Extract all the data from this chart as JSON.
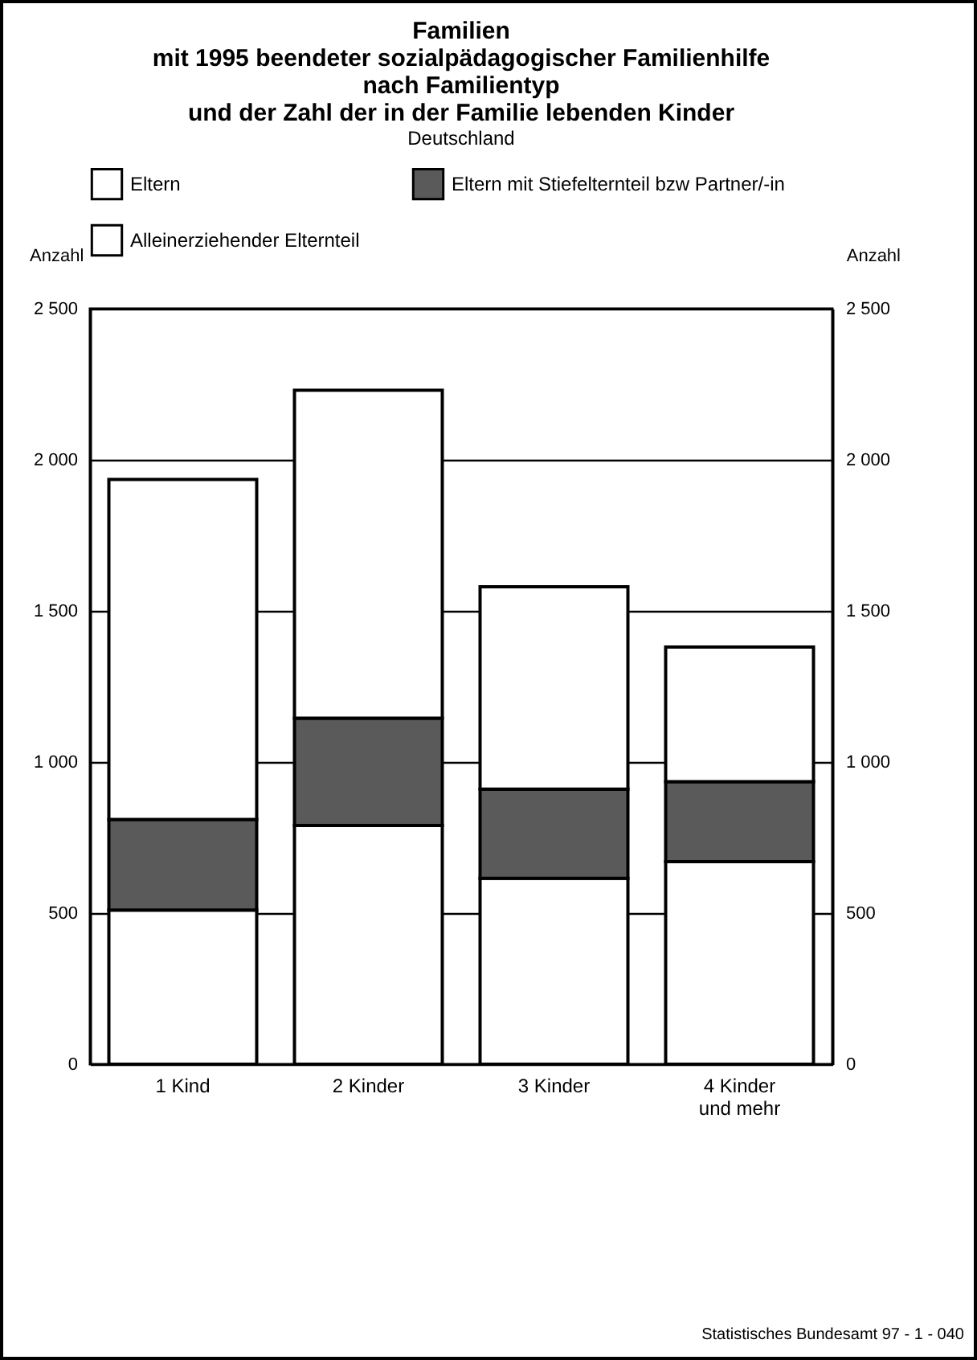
{
  "chart_data": {
    "type": "bar",
    "stacked": true,
    "title": "Familien\nmit 1995 beendeter sozialpädagogischer Familienhilfe\nnach Familientyp\nund der Zahl der in der Familie lebenden Kinder",
    "subtitle": "Deutschland",
    "ylabel": "Anzahl",
    "y2label": "Anzahl",
    "categories": [
      "1 Kind",
      "2 Kinder",
      "3 Kinder",
      "4 Kinder\nund mehr"
    ],
    "series": [
      {
        "name": "Eltern",
        "color": "#ffffff",
        "values": [
          510,
          790,
          615,
          670
        ]
      },
      {
        "name": "Eltern mit Stiefelternteil bzw  Partner/-in",
        "color": "#5a5a5a",
        "values": [
          300,
          355,
          295,
          265
        ]
      },
      {
        "name": "Alleinerziehender Elternteil",
        "color": "#ffffff",
        "values": [
          1125,
          1085,
          670,
          445
        ]
      }
    ],
    "ylim": [
      0,
      2500
    ],
    "yticks": [
      {
        "value": 0,
        "label": "0"
      },
      {
        "value": 500,
        "label": "500"
      },
      {
        "value": 1000,
        "label": "1 000"
      },
      {
        "value": 1500,
        "label": "1 500"
      },
      {
        "value": 2000,
        "label": "2 000"
      },
      {
        "value": 2500,
        "label": "2 500"
      }
    ],
    "y2lim": [
      0,
      2500
    ],
    "y2ticks": [
      {
        "value": 0,
        "label": "0"
      },
      {
        "value": 500,
        "label": "500"
      },
      {
        "value": 1000,
        "label": "1 000"
      },
      {
        "value": 1500,
        "label": "1 500"
      },
      {
        "value": 2000,
        "label": "2 000"
      },
      {
        "value": 2500,
        "label": "2 500"
      }
    ],
    "grid": "y",
    "legend": "top",
    "annotations": [
      "Statistisches Bundesamt 97 - 1 - 040"
    ]
  }
}
